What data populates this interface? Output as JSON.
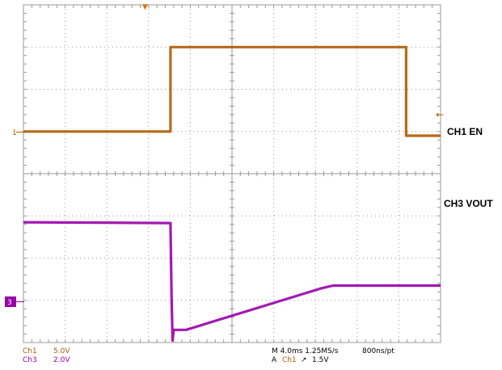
{
  "chart_data": {
    "type": "line",
    "x_range": [
      0,
      40
    ],
    "y_range": [
      0,
      8
    ],
    "x_divisions": 10,
    "y_divisions": 8,
    "grid": true,
    "series": [
      {
        "name": "CH1 EN",
        "color": "#b05a00",
        "points": [
          [
            0,
            5.0
          ],
          [
            14.1,
            5.0
          ],
          [
            14.1,
            7.0
          ],
          [
            36.7,
            7.0
          ],
          [
            36.7,
            4.9
          ],
          [
            40,
            4.9
          ]
        ]
      },
      {
        "name": "CH3 VOUT",
        "color": "#9900aa",
        "points": [
          [
            0,
            2.85
          ],
          [
            14.1,
            2.83
          ],
          [
            14.2,
            1.1
          ],
          [
            14.3,
            0.05
          ],
          [
            14.4,
            0.3
          ],
          [
            15.6,
            0.3
          ],
          [
            28.5,
            1.28
          ],
          [
            29.7,
            1.35
          ],
          [
            40,
            1.35
          ]
        ]
      }
    ]
  },
  "markers": {
    "ch1_ground": "1",
    "ch3_ground": "3",
    "trigger_arrow": "▼",
    "trigger_level_arrow": "←"
  },
  "labels": {
    "ch1": "CH1 EN",
    "ch3": "CH3 VOUT"
  },
  "status": {
    "ch1_name": "Ch1",
    "ch1_scale": "5.0V",
    "ch3_name": "Ch3",
    "ch3_scale": "2.0V",
    "timebase": "M 4.0ms 1.25MS/s",
    "resolution": "800ns/pt",
    "trigger_prefix": "A",
    "trigger_source": "Ch1",
    "trigger_slope": "↗",
    "trigger_level": "1.5V"
  },
  "colors": {
    "ch1": "#b05a00",
    "ch3": "#9900aa",
    "grid": "#9a9a9a",
    "status_ch1": "#b05a00",
    "status_ch3": "#9900aa",
    "status_text": "#000000"
  }
}
